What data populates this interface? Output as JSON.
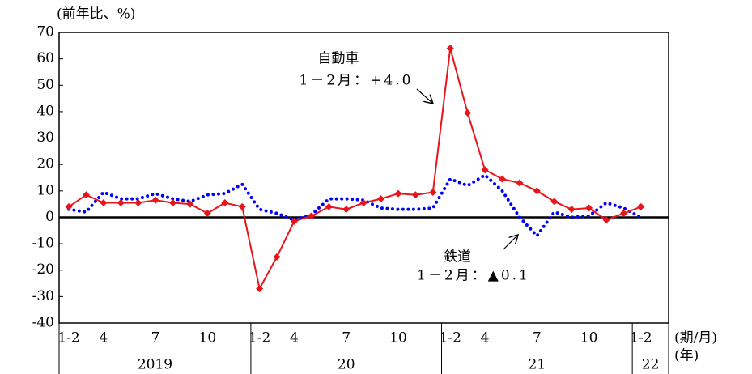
{
  "chart_data": {
    "type": "line",
    "y_unit_label": "(前年比、%)",
    "x_unit_label": "(期/月)",
    "year_unit_label": "(年)",
    "categories": [
      "1-2",
      null,
      "4",
      null,
      null,
      "7",
      null,
      null,
      "10",
      null,
      null,
      "1-2",
      null,
      "4",
      null,
      null,
      "7",
      null,
      null,
      "10",
      null,
      null,
      "1-2",
      null,
      "4",
      null,
      null,
      "7",
      null,
      null,
      "10",
      null,
      null,
      "1-2"
    ],
    "year_labels": [
      "2019",
      "20",
      "21",
      "22"
    ],
    "series": [
      {
        "name": "自動車",
        "color": "#e8141a",
        "style": "solid",
        "values": [
          4,
          8.5,
          5.5,
          5.5,
          5.5,
          6.5,
          5.5,
          5,
          1.5,
          5.5,
          4,
          -27,
          -15,
          -1.5,
          0.5,
          4,
          3,
          5.5,
          7,
          9,
          8.5,
          9.5,
          64,
          39.5,
          18,
          14.5,
          13,
          10,
          6,
          3,
          3.5,
          -1,
          1.5,
          4.0
        ]
      },
      {
        "name": "鉄道",
        "color": "#0000ff",
        "style": "dotted",
        "values": [
          3,
          2,
          9.5,
          7,
          7,
          9,
          7,
          6,
          8.5,
          9,
          12.5,
          3,
          1.5,
          -1,
          1,
          7,
          7,
          6.5,
          3.5,
          3,
          3,
          3.5,
          14.5,
          12,
          16,
          10,
          0,
          -7,
          2,
          0,
          0.5,
          5.5,
          3.5,
          -0.1
        ]
      }
    ],
    "annotations": [
      {
        "title": "自動車",
        "text": "1－2月：+4.0"
      },
      {
        "title": "鉄道",
        "text": "1－2月：▲0.1"
      }
    ],
    "ylim": [
      -40,
      70
    ],
    "yticks": [
      -40,
      -30,
      -20,
      -10,
      0,
      10,
      20,
      30,
      40,
      50,
      60,
      70
    ],
    "grid": false
  }
}
